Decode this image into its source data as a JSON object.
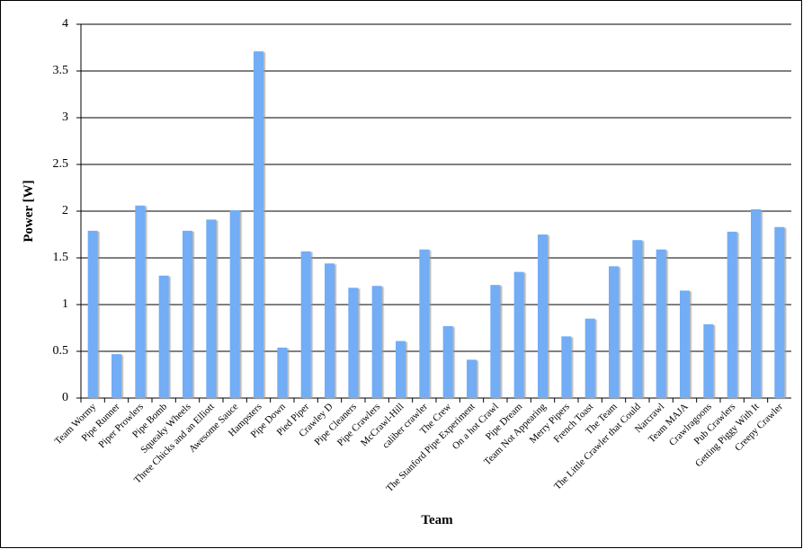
{
  "chart_data": {
    "type": "bar",
    "x_label": "Team",
    "y_label": "Power [W]",
    "categories": [
      "Team Wormy",
      "Pipe Runner",
      "Piper Prowlers",
      "Pipe Bomb",
      "Squeaky Wheels",
      "Three Chicks and an Elliott",
      "Awesome Sauce",
      "Hampsters",
      "Pipe Down",
      "Pied Piper",
      "Crawley D",
      "Pipe Cleaners",
      "Pipe Crawlers",
      "McCrawl-Hill",
      "caliber crawler",
      "The Crew",
      "The Stanford Pipe Experiment",
      "On a hot Crawl",
      "Pipe Dream",
      "Team Not Appearing",
      "Merry Pipers",
      "French Toast",
      "The Team",
      "The Little Crawler that Could",
      "Narcrawl",
      "Team MAJA",
      "Crawlragoons",
      "Pub Crawlers",
      "Getting Piggy With It",
      "Creepy Crawler"
    ],
    "values": [
      1.79,
      0.47,
      2.06,
      1.31,
      1.79,
      1.91,
      2.01,
      3.71,
      0.54,
      1.57,
      1.44,
      1.18,
      1.2,
      0.61,
      1.59,
      0.77,
      0.41,
      1.21,
      1.35,
      1.75,
      0.66,
      0.85,
      1.41,
      1.69,
      1.59,
      1.15,
      0.79,
      1.78,
      2.02,
      1.83
    ],
    "color": "#72adf5",
    "ylim": [
      0,
      4
    ],
    "yticks": [
      0,
      0.5,
      1,
      1.5,
      2,
      2.5,
      3,
      3.5,
      4
    ],
    "grid": true
  }
}
